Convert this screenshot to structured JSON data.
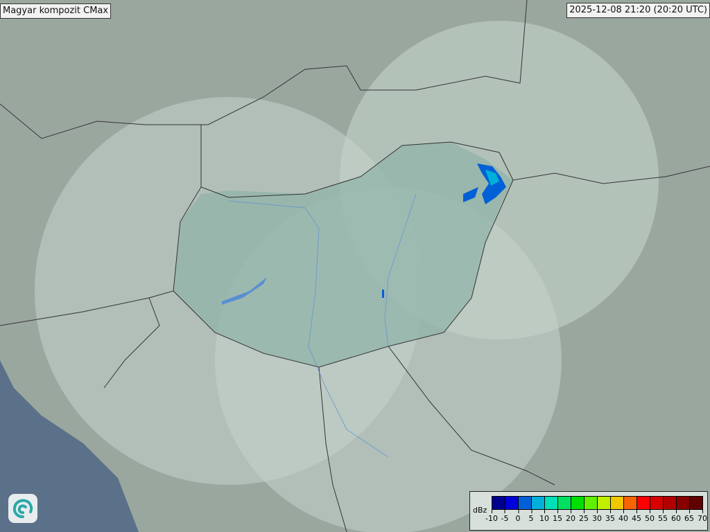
{
  "header": {
    "title": "Magyar kompozit  CMax",
    "timestamp": "2025-12-08 21:20 (20:20 UTC)"
  },
  "legend": {
    "unit": "dBz",
    "ticks": [
      "-10",
      "-5",
      "0",
      "5",
      "10",
      "15",
      "20",
      "25",
      "30",
      "35",
      "40",
      "45",
      "50",
      "55",
      "60",
      "65",
      "70"
    ],
    "colors": [
      "#000090",
      "#0000d8",
      "#0060d8",
      "#00b0d8",
      "#00e0b8",
      "#00e060",
      "#00e000",
      "#60f000",
      "#c0f000",
      "#f0c800",
      "#f86400",
      "#ff0000",
      "#d80000",
      "#b00000",
      "#880000",
      "#600000"
    ]
  },
  "logo": {
    "icon": "swirl-logo-icon"
  },
  "map": {
    "land_color": "#9aa79f",
    "sea_color": "#5b7189",
    "coverage_color": "#c7d6cf",
    "hungary_color": "#8fb2a8"
  }
}
